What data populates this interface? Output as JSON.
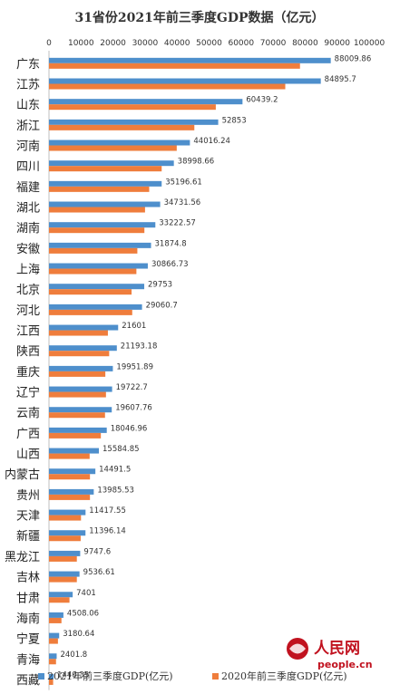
{
  "chart_data": {
    "type": "bar",
    "orientation": "horizontal",
    "title": "31省份2021年前三季度GDP数据（亿元）",
    "xlim": [
      0,
      100000
    ],
    "x_ticks": [
      "0",
      "10000",
      "20000",
      "30000",
      "40000",
      "50000",
      "60000",
      "70000",
      "80000",
      "90000",
      "100000"
    ],
    "gridlines": false,
    "legend_position": "bottom",
    "categories": [
      "广东",
      "江苏",
      "山东",
      "浙江",
      "河南",
      "四川",
      "福建",
      "湖北",
      "湖南",
      "安徽",
      "上海",
      "北京",
      "河北",
      "江西",
      "陕西",
      "重庆",
      "辽宁",
      "云南",
      "广西",
      "山西",
      "内蒙古",
      "贵州",
      "天津",
      "新疆",
      "黑龙江",
      "吉林",
      "甘肃",
      "海南",
      "宁夏",
      "青海",
      "西藏"
    ],
    "series": [
      {
        "name": "2021年前三季度GDP(亿元)",
        "color": "#4e8fcc",
        "values": [
          88009.86,
          84895.7,
          60439.2,
          52853,
          44016.24,
          38998.66,
          35196.61,
          34731.56,
          33222.57,
          31874.8,
          30866.73,
          29753,
          29060.7,
          21601,
          21193.18,
          19951.89,
          19722.7,
          19607.76,
          18046.96,
          15584.85,
          14491.5,
          13985.53,
          11417.55,
          11396.14,
          9747.6,
          9536.61,
          7401,
          4508.06,
          3180.64,
          2401.8,
          1440.35
        ],
        "labels": [
          "88009.86",
          "84895.7",
          "60439.2",
          "52853",
          "44016.24",
          "38998.66",
          "35196.61",
          "34731.56",
          "33222.57",
          "31874.8",
          "30866.73",
          "29753",
          "29060.7",
          "21601",
          "21193.18",
          "19951.89",
          "19722.7",
          "19607.76",
          "18046.96",
          "15584.85",
          "14491.5",
          "13985.53",
          "11417.55",
          "11396.14",
          "9747.6",
          "9536.61",
          "7401",
          "4508.06",
          "3180.64",
          "2401.8",
          "1440.35"
        ]
      },
      {
        "name": "2020年前三季度GDP(亿元)",
        "color": "#ef7d3c",
        "values": [
          78400,
          73800,
          52100,
          45400,
          39900,
          35200,
          31300,
          30000,
          29800,
          27600,
          27300,
          25800,
          26000,
          18400,
          18800,
          17600,
          17800,
          17500,
          16200,
          12700,
          12800,
          12800,
          10000,
          9900,
          8700,
          8700,
          6400,
          3900,
          2800,
          2200,
          1300
        ]
      }
    ]
  },
  "logo": {
    "name": "人民网",
    "url_text": "people.cn"
  }
}
